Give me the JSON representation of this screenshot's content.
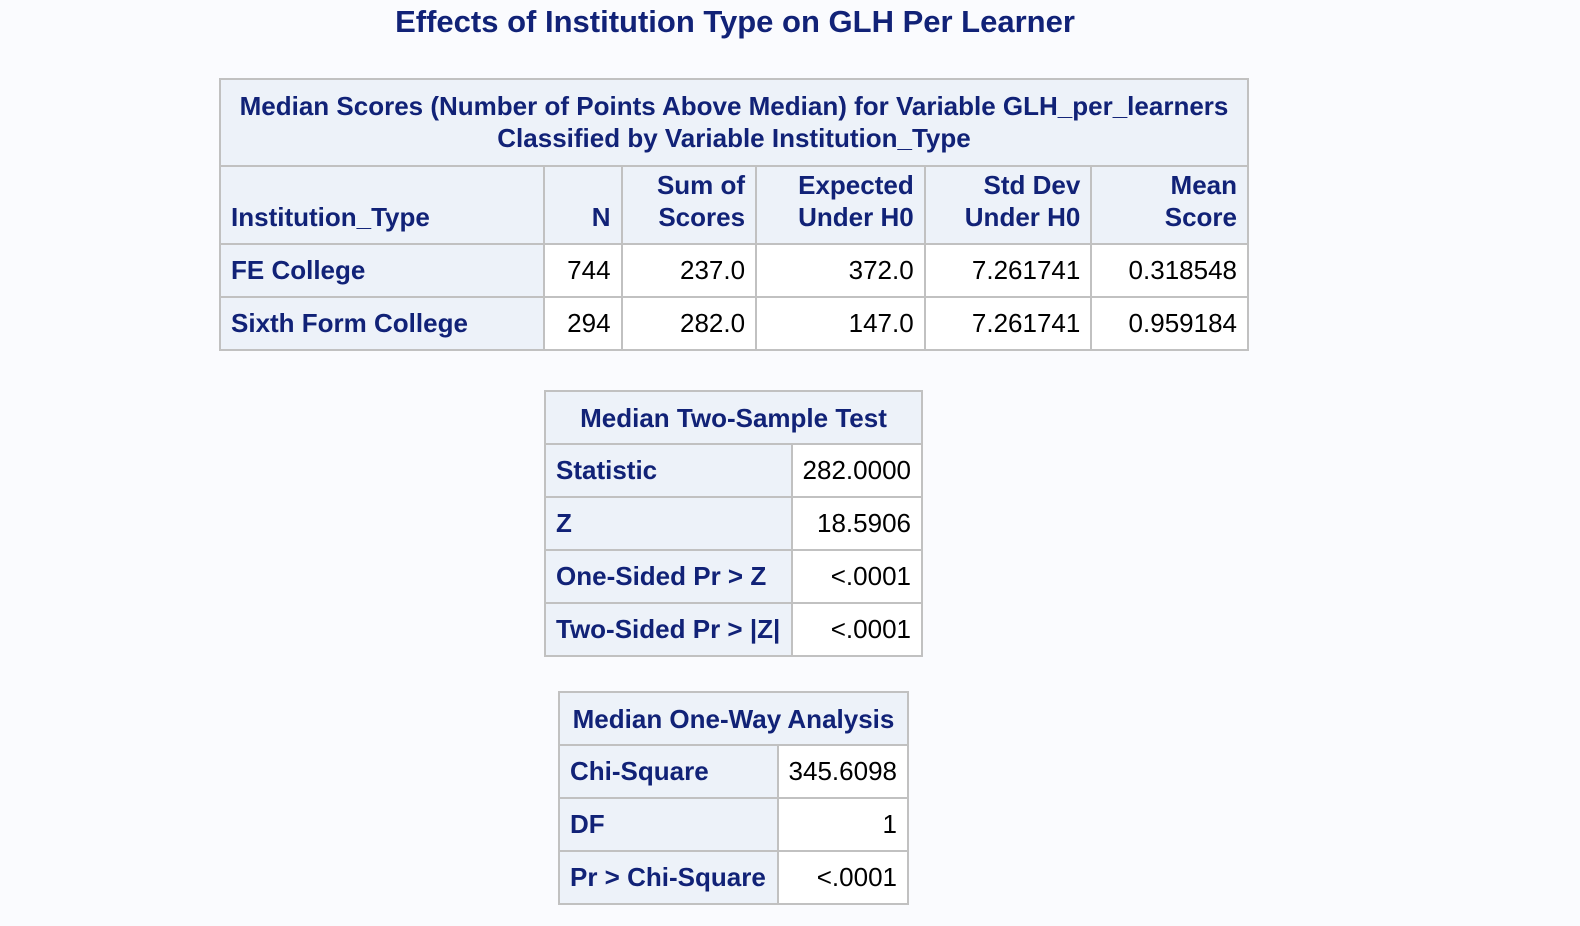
{
  "title": "Effects of Institution Type on GLH Per Learner",
  "median_scores": {
    "caption_line1": "Median Scores (Number of Points Above Median) for Variable GLH_per_learners",
    "caption_line2": "Classified by Variable Institution_Type",
    "headers": {
      "institution_type": "Institution_Type",
      "n": "N",
      "sum_line1": "Sum of",
      "sum_line2": "Scores",
      "expected_line1": "Expected",
      "expected_line2": "Under H0",
      "stddev_line1": "Std Dev",
      "stddev_line2": "Under H0",
      "mean_line1": "Mean",
      "mean_line2": "Score"
    },
    "rows": [
      {
        "institution_type": "FE College",
        "n": "744",
        "sum_of_scores": "237.0",
        "expected_under_h0": "372.0",
        "std_dev_under_h0": "7.261741",
        "mean_score": "0.318548"
      },
      {
        "institution_type": "Sixth Form College",
        "n": "294",
        "sum_of_scores": "282.0",
        "expected_under_h0": "147.0",
        "std_dev_under_h0": "7.261741",
        "mean_score": "0.959184"
      }
    ]
  },
  "two_sample_test": {
    "caption": "Median Two-Sample Test",
    "rows": [
      {
        "label": "Statistic",
        "value": "282.0000"
      },
      {
        "label": "Z",
        "value": "18.5906"
      },
      {
        "label": "One-Sided Pr > Z",
        "value": "<.0001"
      },
      {
        "label": "Two-Sided Pr > |Z|",
        "value": "<.0001"
      }
    ]
  },
  "one_way_analysis": {
    "caption": "Median One-Way Analysis",
    "rows": [
      {
        "label": "Chi-Square",
        "value": "345.6098"
      },
      {
        "label": "DF",
        "value": "1"
      },
      {
        "label": "Pr > Chi-Square",
        "value": "<.0001"
      }
    ]
  }
}
